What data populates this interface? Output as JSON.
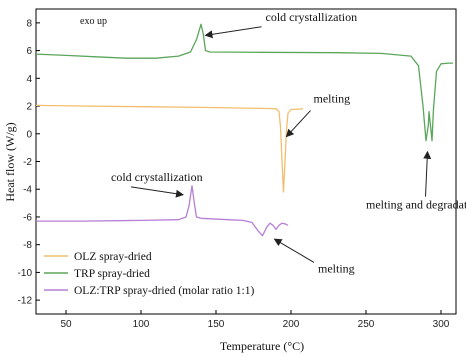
{
  "chart_data": {
    "type": "line",
    "title": "",
    "xlabel": "Temperature (°C)",
    "ylabel": "Heat flow (W/g)",
    "xlim": [
      30,
      310
    ],
    "ylim": [
      -13,
      9
    ],
    "xticks": [
      50,
      100,
      150,
      200,
      250,
      300
    ],
    "yticks": [
      8,
      6,
      4,
      2,
      0,
      -2,
      -4,
      -6,
      -8,
      -10,
      -12
    ],
    "grid": false,
    "legend_position": "bottom-left",
    "corner_label": "exo up",
    "series": [
      {
        "name": "OLZ spray-dried",
        "color": "#f2be6e",
        "points": [
          [
            30,
            2.05
          ],
          [
            60,
            2.0
          ],
          [
            100,
            1.95
          ],
          [
            140,
            1.9
          ],
          [
            170,
            1.85
          ],
          [
            185,
            1.82
          ],
          [
            190,
            1.8
          ],
          [
            192,
            1.6
          ],
          [
            193,
            0.5
          ],
          [
            194,
            -2.0
          ],
          [
            195,
            -4.2
          ],
          [
            196,
            -2.0
          ],
          [
            197,
            0.3
          ],
          [
            198,
            1.5
          ],
          [
            200,
            1.75
          ],
          [
            205,
            1.78
          ],
          [
            208,
            1.8
          ]
        ]
      },
      {
        "name": "TRP spray-dried",
        "color": "#5aa65a",
        "points": [
          [
            30,
            5.75
          ],
          [
            50,
            5.65
          ],
          [
            70,
            5.55
          ],
          [
            90,
            5.45
          ],
          [
            110,
            5.45
          ],
          [
            125,
            5.6
          ],
          [
            133,
            5.9
          ],
          [
            137,
            6.8
          ],
          [
            140,
            7.9
          ],
          [
            141.5,
            7.2
          ],
          [
            143,
            6.0
          ],
          [
            146,
            5.9
          ],
          [
            180,
            5.88
          ],
          [
            230,
            5.85
          ],
          [
            260,
            5.8
          ],
          [
            280,
            5.6
          ],
          [
            285,
            4.9
          ],
          [
            288,
            2.0
          ],
          [
            290,
            -0.5
          ],
          [
            291.5,
            0.6
          ],
          [
            292,
            1.6
          ],
          [
            293,
            0.6
          ],
          [
            294,
            -0.5
          ],
          [
            295,
            1.8
          ],
          [
            297,
            4.5
          ],
          [
            300,
            5.05
          ],
          [
            305,
            5.1
          ],
          [
            308,
            5.1
          ]
        ]
      },
      {
        "name": "OLZ:TRP spray-dried (molar ratio 1:1)",
        "color": "#b57fd6",
        "points": [
          [
            30,
            -6.3
          ],
          [
            60,
            -6.3
          ],
          [
            100,
            -6.25
          ],
          [
            125,
            -6.2
          ],
          [
            130,
            -6.0
          ],
          [
            132,
            -5.2
          ],
          [
            134,
            -3.75
          ],
          [
            135.5,
            -5.0
          ],
          [
            137,
            -6.0
          ],
          [
            140,
            -6.1
          ],
          [
            158,
            -6.2
          ],
          [
            168,
            -6.25
          ],
          [
            174,
            -6.4
          ],
          [
            178,
            -7.0
          ],
          [
            181,
            -7.35
          ],
          [
            184,
            -6.7
          ],
          [
            186,
            -6.45
          ],
          [
            188,
            -6.6
          ],
          [
            190,
            -6.9
          ],
          [
            192,
            -6.6
          ],
          [
            194,
            -6.45
          ],
          [
            196,
            -6.5
          ],
          [
            198,
            -6.6
          ]
        ]
      }
    ],
    "annotations": [
      {
        "text": "cold crystallization",
        "x": 183,
        "y": 8.15,
        "ax": 143,
        "ay": 7.1
      },
      {
        "text": "melting",
        "x": 215,
        "y": 2.25,
        "ax": 197,
        "ay": -0.2
      },
      {
        "text": "melting and degradation",
        "x": 250,
        "y": -5.4,
        "ax": 291,
        "ay": -1.3
      },
      {
        "text": "cold crystallization",
        "x": 80,
        "y": -3.4,
        "ax": 128,
        "ay": -4.4
      },
      {
        "text": "melting",
        "x": 218,
        "y": -10.0,
        "ax": 189,
        "ay": -7.6
      }
    ]
  }
}
